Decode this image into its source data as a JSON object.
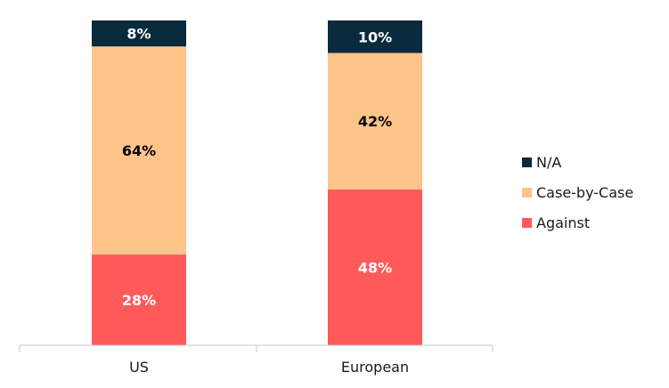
{
  "chart_data": {
    "type": "bar",
    "stacked": true,
    "categories": [
      "US",
      "European"
    ],
    "series": [
      {
        "name": "Against",
        "values": [
          28,
          48
        ],
        "labels": [
          "28%",
          "48%"
        ],
        "color": "#ff5a5a",
        "label_color": "#ffffff"
      },
      {
        "name": "Case-by-Case",
        "values": [
          64,
          42
        ],
        "labels": [
          "64%",
          "42%"
        ],
        "color": "#fdc48a",
        "label_color": "#000000"
      },
      {
        "name": "N/A",
        "values": [
          8,
          10
        ],
        "labels": [
          "8%",
          "10%"
        ],
        "color": "#0a2a3d",
        "label_color": "#ffffff"
      }
    ],
    "title": "",
    "xlabel": "",
    "ylabel": "",
    "ylim": [
      0,
      100
    ],
    "grid": false,
    "legend": {
      "position": "right",
      "order": [
        "N/A",
        "Case-by-Case",
        "Against"
      ]
    }
  }
}
